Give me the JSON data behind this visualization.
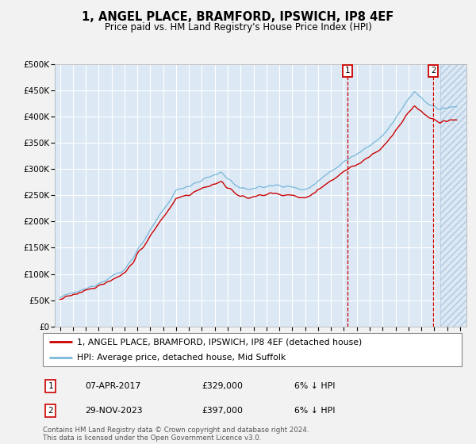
{
  "title": "1, ANGEL PLACE, BRAMFORD, IPSWICH, IP8 4EF",
  "subtitle": "Price paid vs. HM Land Registry's House Price Index (HPI)",
  "ylim": [
    0,
    500000
  ],
  "yticks": [
    0,
    50000,
    100000,
    150000,
    200000,
    250000,
    300000,
    350000,
    400000,
    450000,
    500000
  ],
  "ytick_labels": [
    "£0",
    "£50K",
    "£100K",
    "£150K",
    "£200K",
    "£250K",
    "£300K",
    "£350K",
    "£400K",
    "£450K",
    "£500K"
  ],
  "xticks": [
    1995,
    1996,
    1997,
    1998,
    1999,
    2000,
    2001,
    2002,
    2003,
    2004,
    2005,
    2006,
    2007,
    2008,
    2009,
    2010,
    2011,
    2012,
    2013,
    2014,
    2015,
    2016,
    2017,
    2018,
    2019,
    2020,
    2021,
    2022,
    2023,
    2024,
    2025,
    2026
  ],
  "hpi_color": "#7ab8d9",
  "price_color": "#cc0000",
  "marker1_date": 2017.28,
  "marker2_date": 2023.92,
  "legend_label1": "1, ANGEL PLACE, BRAMFORD, IPSWICH, IP8 4EF (detached house)",
  "legend_label2": "HPI: Average price, detached house, Mid Suffolk",
  "table_row1": [
    "1",
    "07-APR-2017",
    "£329,000",
    "6% ↓ HPI"
  ],
  "table_row2": [
    "2",
    "29-NOV-2023",
    "£397,000",
    "6% ↓ HPI"
  ],
  "footnote": "Contains HM Land Registry data © Crown copyright and database right 2024.\nThis data is licensed under the Open Government Licence v3.0.",
  "plot_bg_color": "#dce9f5",
  "grid_color": "#ffffff",
  "fig_bg_color": "#f2f2f2"
}
